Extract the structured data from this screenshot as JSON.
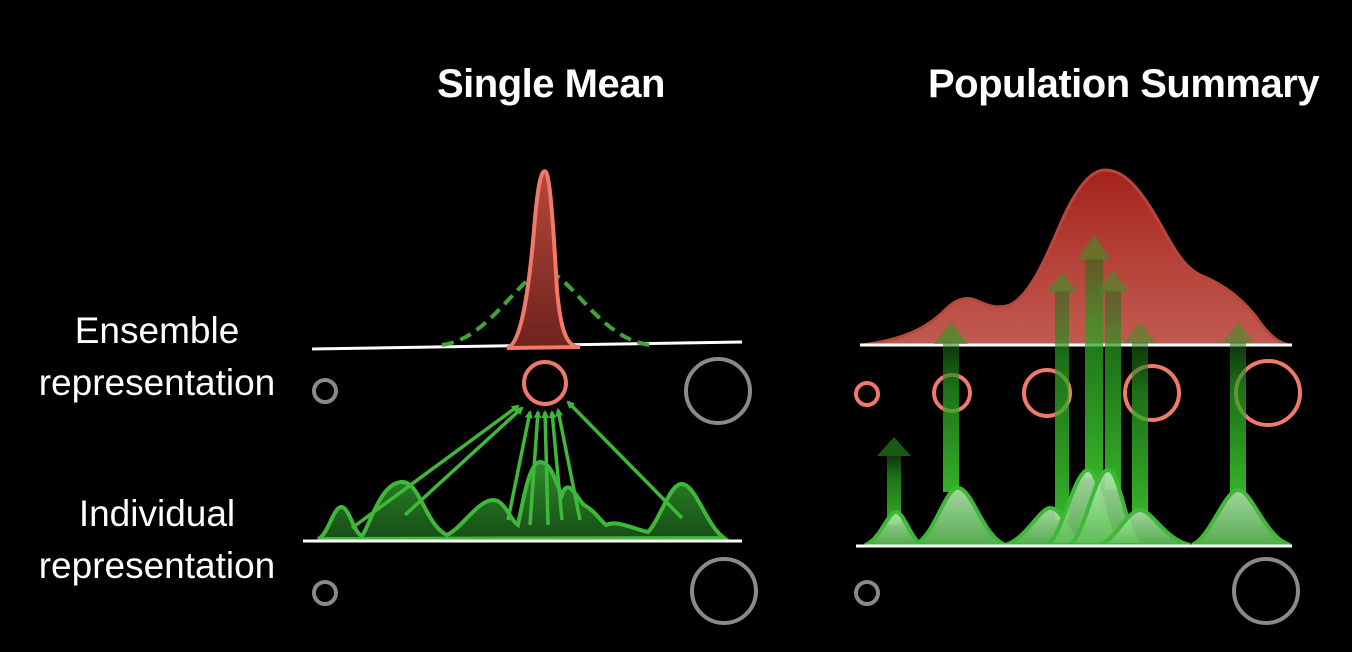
{
  "panels": {
    "left_title": "Single Mean",
    "right_title": "Population Summary"
  },
  "rows": {
    "ensemble": {
      "line1": "Ensemble",
      "line2": "representation"
    },
    "individual": {
      "line1": "Individual",
      "line2": "representation"
    }
  },
  "colors": {
    "background": "#000000",
    "text": "#ffffff",
    "ensemble_red": "#f07a6a",
    "ensemble_fill": "#a8362c",
    "individual_green": "#3fb83a",
    "individual_fill_dark": "#1f6b1d",
    "individual_fill_light": "#8fd88a",
    "scale_circle_gray": "#8a8a8a"
  },
  "icons": [
    "small-gray-circle-icon",
    "large-gray-circle-icon",
    "red-circle-icon"
  ]
}
